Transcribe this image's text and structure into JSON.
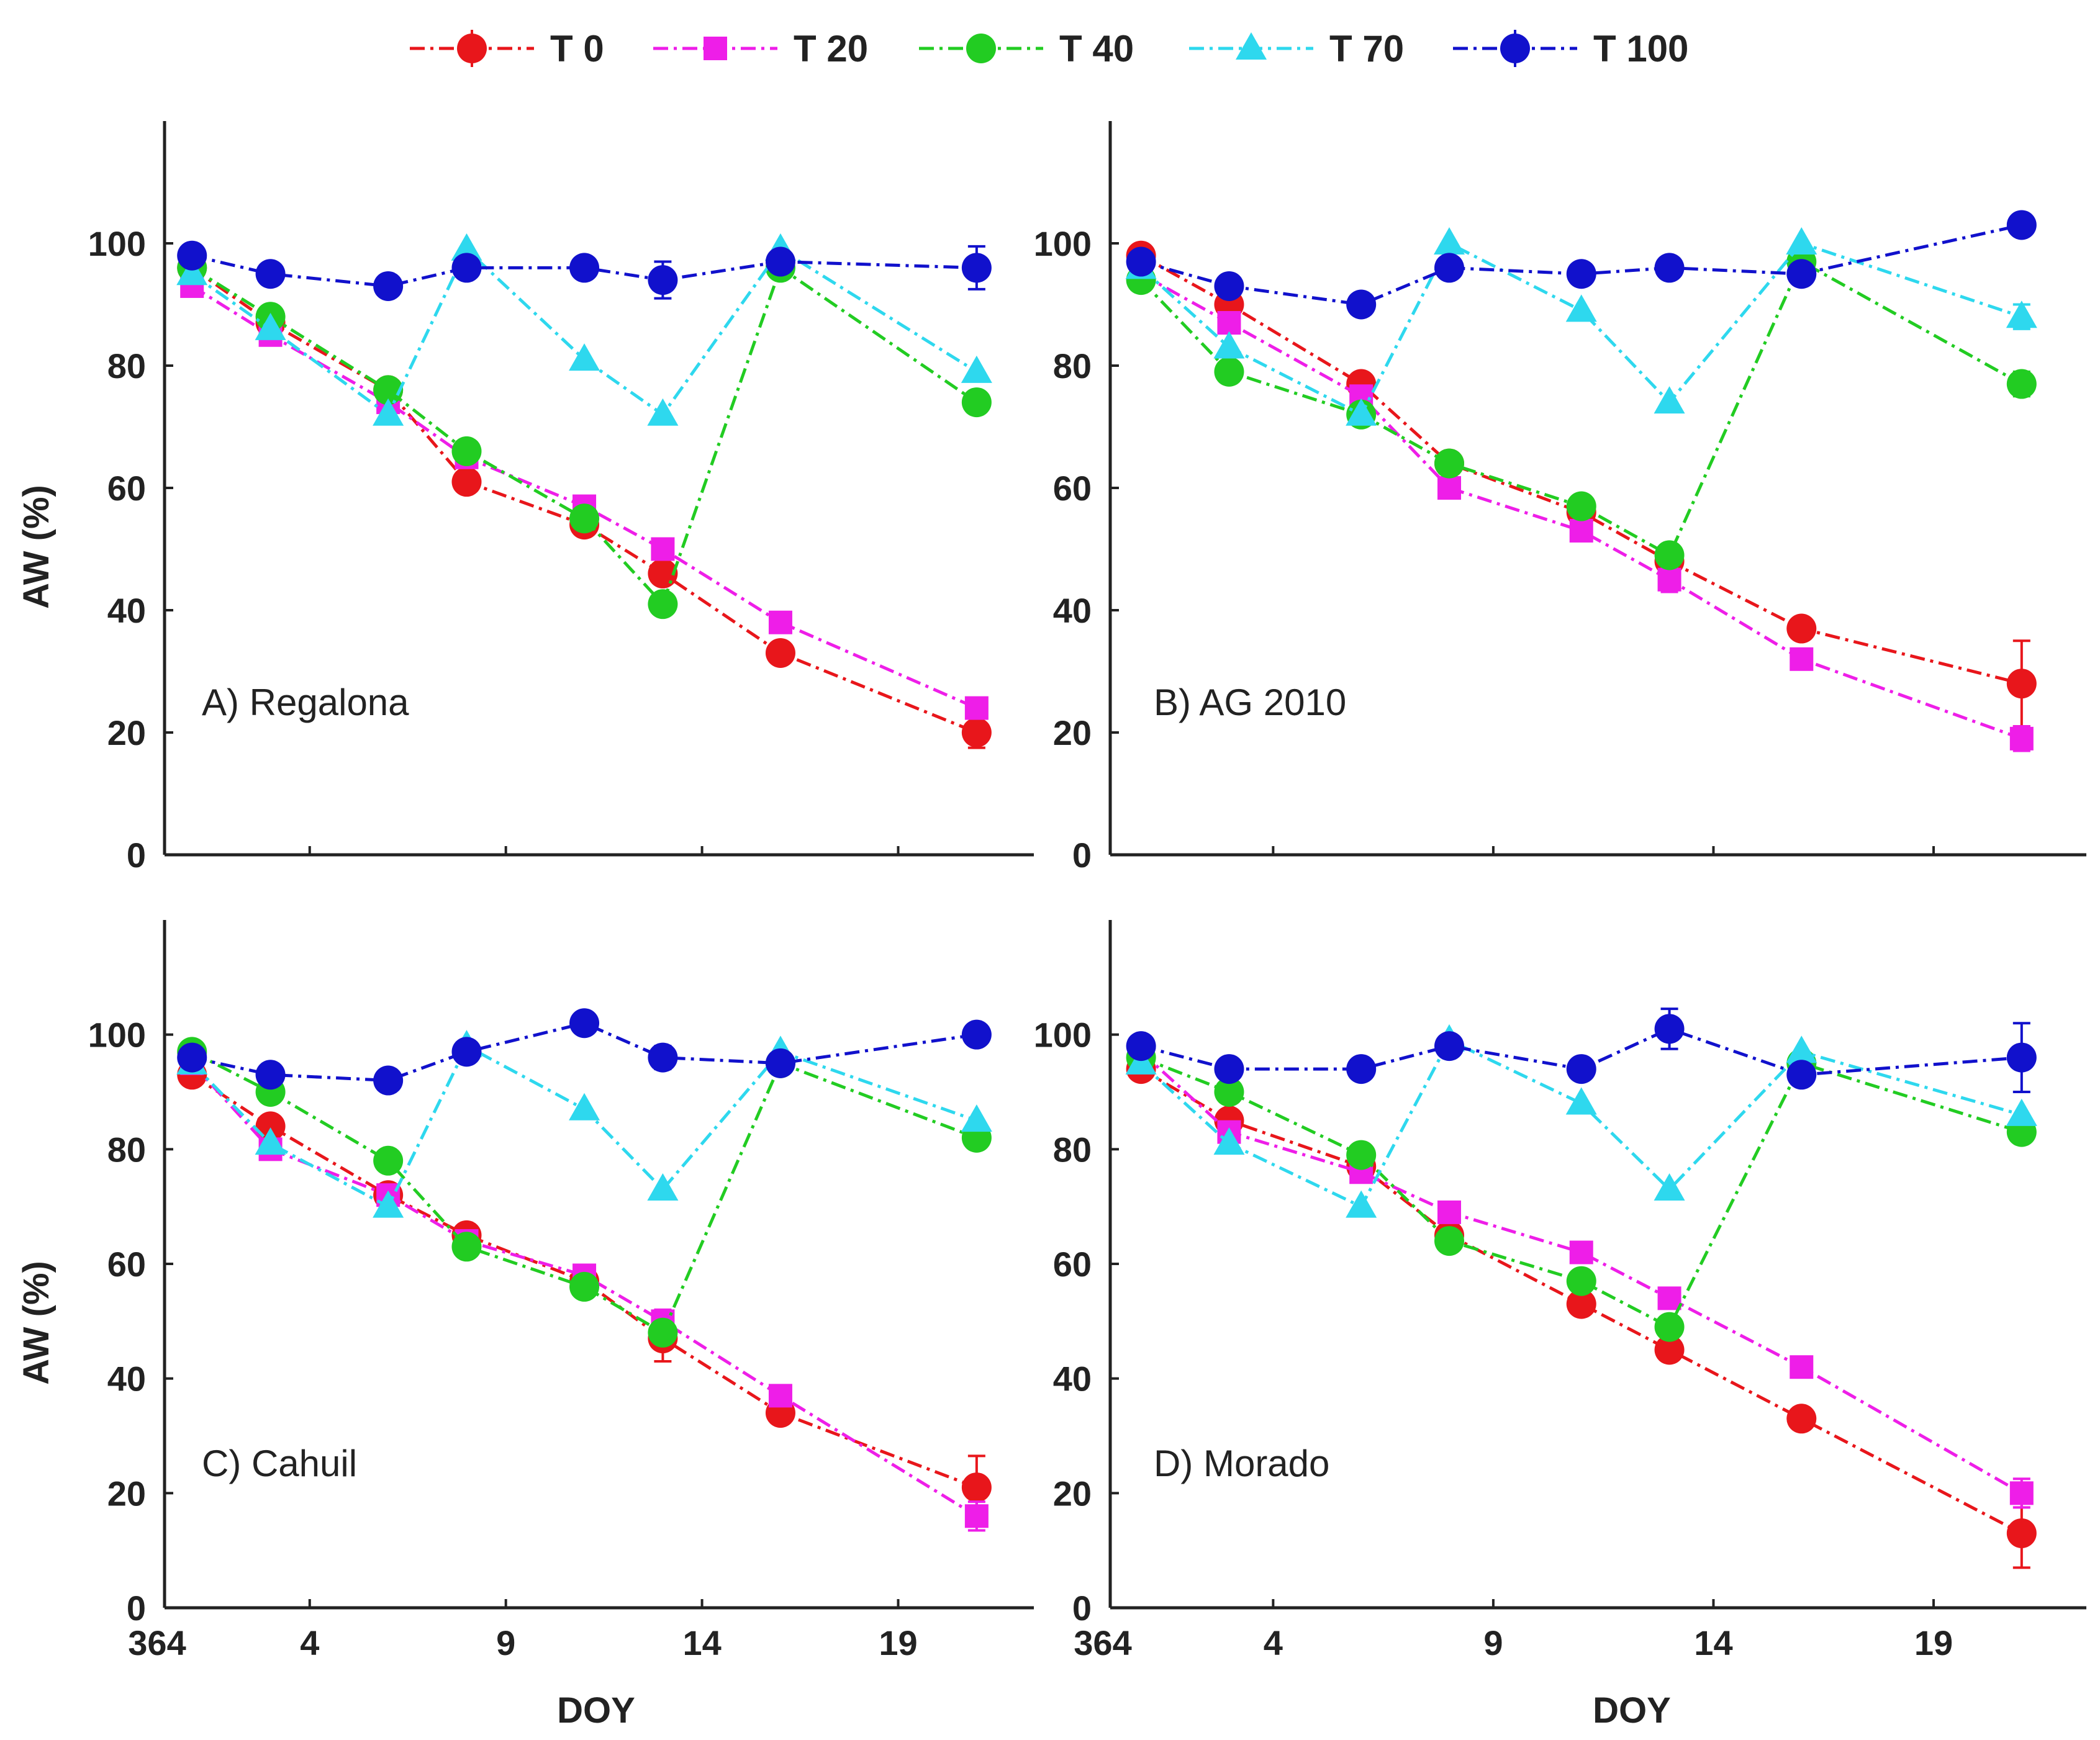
{
  "chart_data": {
    "type": "line",
    "legend": {
      "position": "top-center",
      "entries": [
        {
          "name": "T 0",
          "color": "#e8161b",
          "marker": "circle"
        },
        {
          "name": "T 20",
          "color": "#ee1ee8",
          "marker": "square"
        },
        {
          "name": "T 40",
          "color": "#22cc22",
          "marker": "circle"
        },
        {
          "name": "T 70",
          "color": "#2ed8ee",
          "marker": "triangle"
        },
        {
          "name": "T 100",
          "color": "#1111cc",
          "marker": "circle"
        }
      ]
    },
    "x_ticks": [
      4,
      9,
      14,
      19
    ],
    "x_tick_labels": [
      "4",
      "9",
      "14",
      "19"
    ],
    "x_origin_label": "364",
    "y_ticks": [
      0,
      20,
      40,
      60,
      80,
      100
    ],
    "xlim": [
      0.3,
      22.3
    ],
    "ylim": [
      0,
      120
    ],
    "grid": false,
    "panels": [
      {
        "label": "A) Regalona",
        "xlabel": "",
        "ylabel": "AW (%)",
        "series": [
          {
            "name": "T 0",
            "points": [
              [
                1,
                96
              ],
              [
                3,
                87
              ],
              [
                6,
                76
              ],
              [
                8,
                61
              ],
              [
                11,
                54
              ],
              [
                13,
                46
              ],
              [
                16,
                33
              ],
              [
                21,
                20
              ]
            ],
            "errors": [
              [
                21,
                2.5
              ]
            ]
          },
          {
            "name": "T 20",
            "points": [
              [
                1,
                93
              ],
              [
                3,
                85
              ],
              [
                6,
                74
              ],
              [
                8,
                65
              ],
              [
                11,
                57
              ],
              [
                13,
                50
              ],
              [
                16,
                38
              ],
              [
                21,
                24
              ]
            ],
            "errors": []
          },
          {
            "name": "T 40",
            "points": [
              [
                1,
                96
              ],
              [
                3,
                88
              ],
              [
                6,
                76
              ],
              [
                8,
                66
              ],
              [
                11,
                55
              ],
              [
                13,
                41
              ],
              [
                16,
                96
              ],
              [
                21,
                74
              ]
            ],
            "errors": []
          },
          {
            "name": "T 70",
            "points": [
              [
                1,
                95
              ],
              [
                3,
                86
              ],
              [
                6,
                72
              ],
              [
                8,
                99
              ],
              [
                11,
                81
              ],
              [
                13,
                72
              ],
              [
                16,
                99
              ],
              [
                21,
                79
              ]
            ],
            "errors": []
          },
          {
            "name": "T 100",
            "points": [
              [
                1,
                98
              ],
              [
                3,
                95
              ],
              [
                6,
                93
              ],
              [
                8,
                96
              ],
              [
                11,
                96
              ],
              [
                13,
                94
              ],
              [
                16,
                97
              ],
              [
                21,
                96
              ]
            ],
            "errors": [
              [
                13,
                3
              ],
              [
                21,
                3.5
              ]
            ]
          }
        ]
      },
      {
        "label": "B) AG 2010",
        "xlabel": "",
        "ylabel": "",
        "series": [
          {
            "name": "T 0",
            "points": [
              [
                1,
                98
              ],
              [
                3,
                90
              ],
              [
                6,
                77
              ],
              [
                8,
                64
              ],
              [
                11,
                56
              ],
              [
                13,
                48
              ],
              [
                16,
                37
              ],
              [
                21,
                28
              ]
            ],
            "errors": [
              [
                21,
                7
              ]
            ]
          },
          {
            "name": "T 20",
            "points": [
              [
                1,
                95
              ],
              [
                3,
                87
              ],
              [
                6,
                75
              ],
              [
                8,
                60
              ],
              [
                11,
                53
              ],
              [
                13,
                45
              ],
              [
                16,
                32
              ],
              [
                21,
                19
              ]
            ],
            "errors": [
              [
                13,
                2
              ],
              [
                21,
                2
              ]
            ]
          },
          {
            "name": "T 40",
            "points": [
              [
                1,
                94
              ],
              [
                3,
                79
              ],
              [
                6,
                72
              ],
              [
                8,
                64
              ],
              [
                11,
                57
              ],
              [
                13,
                49
              ],
              [
                16,
                97
              ],
              [
                21,
                77
              ]
            ],
            "errors": [
              [
                21,
                2
              ]
            ]
          },
          {
            "name": "T 70",
            "points": [
              [
                1,
                96
              ],
              [
                3,
                83
              ],
              [
                6,
                72
              ],
              [
                8,
                100
              ],
              [
                11,
                89
              ],
              [
                13,
                74
              ],
              [
                16,
                100
              ],
              [
                21,
                88
              ]
            ],
            "errors": [
              [
                21,
                2
              ]
            ]
          },
          {
            "name": "T 100",
            "points": [
              [
                1,
                97
              ],
              [
                3,
                93
              ],
              [
                6,
                90
              ],
              [
                8,
                96
              ],
              [
                11,
                95
              ],
              [
                13,
                96
              ],
              [
                16,
                95
              ],
              [
                21,
                103
              ]
            ],
            "errors": [
              [
                13,
                1.5
              ],
              [
                21,
                1.5
              ]
            ]
          }
        ]
      },
      {
        "label": "C) Cahuil",
        "xlabel": "DOY",
        "ylabel": "AW (%)",
        "series": [
          {
            "name": "T 0",
            "points": [
              [
                1,
                93
              ],
              [
                3,
                84
              ],
              [
                6,
                72
              ],
              [
                8,
                65
              ],
              [
                11,
                57
              ],
              [
                13,
                47
              ],
              [
                16,
                34
              ],
              [
                21,
                21
              ]
            ],
            "errors": [
              [
                13,
                4
              ],
              [
                21,
                5.5
              ]
            ]
          },
          {
            "name": "T 20",
            "points": [
              [
                1,
                95
              ],
              [
                3,
                80
              ],
              [
                6,
                72
              ],
              [
                8,
                64
              ],
              [
                11,
                58
              ],
              [
                13,
                50
              ],
              [
                16,
                37
              ],
              [
                21,
                16
              ]
            ],
            "errors": [
              [
                13,
                2
              ],
              [
                21,
                2.5
              ]
            ]
          },
          {
            "name": "T 40",
            "points": [
              [
                1,
                97
              ],
              [
                3,
                90
              ],
              [
                6,
                78
              ],
              [
                8,
                63
              ],
              [
                11,
                56
              ],
              [
                13,
                48
              ],
              [
                16,
                95
              ],
              [
                21,
                82
              ]
            ],
            "errors": []
          },
          {
            "name": "T 70",
            "points": [
              [
                1,
                95
              ],
              [
                3,
                81
              ],
              [
                6,
                70
              ],
              [
                8,
                98
              ],
              [
                11,
                87
              ],
              [
                13,
                73
              ],
              [
                16,
                97
              ],
              [
                21,
                85
              ]
            ],
            "errors": []
          },
          {
            "name": "T 100",
            "points": [
              [
                1,
                96
              ],
              [
                3,
                93
              ],
              [
                6,
                92
              ],
              [
                8,
                97
              ],
              [
                11,
                102
              ],
              [
                13,
                96
              ],
              [
                16,
                95
              ],
              [
                21,
                100
              ]
            ],
            "errors": [
              [
                13,
                2
              ]
            ]
          }
        ]
      },
      {
        "label": "D) Morado",
        "xlabel": "DOY",
        "ylabel": "",
        "series": [
          {
            "name": "T 0",
            "points": [
              [
                1,
                94
              ],
              [
                3,
                85
              ],
              [
                6,
                77
              ],
              [
                8,
                65
              ],
              [
                11,
                53
              ],
              [
                13,
                45
              ],
              [
                16,
                33
              ],
              [
                21,
                13
              ]
            ],
            "errors": [
              [
                21,
                6
              ]
            ]
          },
          {
            "name": "T 20",
            "points": [
              [
                1,
                97
              ],
              [
                3,
                83
              ],
              [
                6,
                76
              ],
              [
                8,
                69
              ],
              [
                11,
                62
              ],
              [
                13,
                54
              ],
              [
                16,
                42
              ],
              [
                21,
                20
              ]
            ],
            "errors": [
              [
                1,
                2.5
              ],
              [
                21,
                2.5
              ]
            ]
          },
          {
            "name": "T 40",
            "points": [
              [
                1,
                96
              ],
              [
                3,
                90
              ],
              [
                6,
                79
              ],
              [
                8,
                64
              ],
              [
                11,
                57
              ],
              [
                13,
                49
              ],
              [
                16,
                95
              ],
              [
                21,
                83
              ]
            ],
            "errors": []
          },
          {
            "name": "T 70",
            "points": [
              [
                1,
                95
              ],
              [
                3,
                81
              ],
              [
                6,
                70
              ],
              [
                8,
                99
              ],
              [
                11,
                88
              ],
              [
                13,
                73
              ],
              [
                16,
                97
              ],
              [
                21,
                86
              ]
            ],
            "errors": []
          },
          {
            "name": "T 100",
            "points": [
              [
                1,
                98
              ],
              [
                3,
                94
              ],
              [
                6,
                94
              ],
              [
                8,
                98
              ],
              [
                11,
                94
              ],
              [
                13,
                101
              ],
              [
                16,
                93
              ],
              [
                21,
                96
              ]
            ],
            "errors": [
              [
                13,
                3.5
              ],
              [
                21,
                6
              ]
            ]
          }
        ]
      }
    ]
  }
}
